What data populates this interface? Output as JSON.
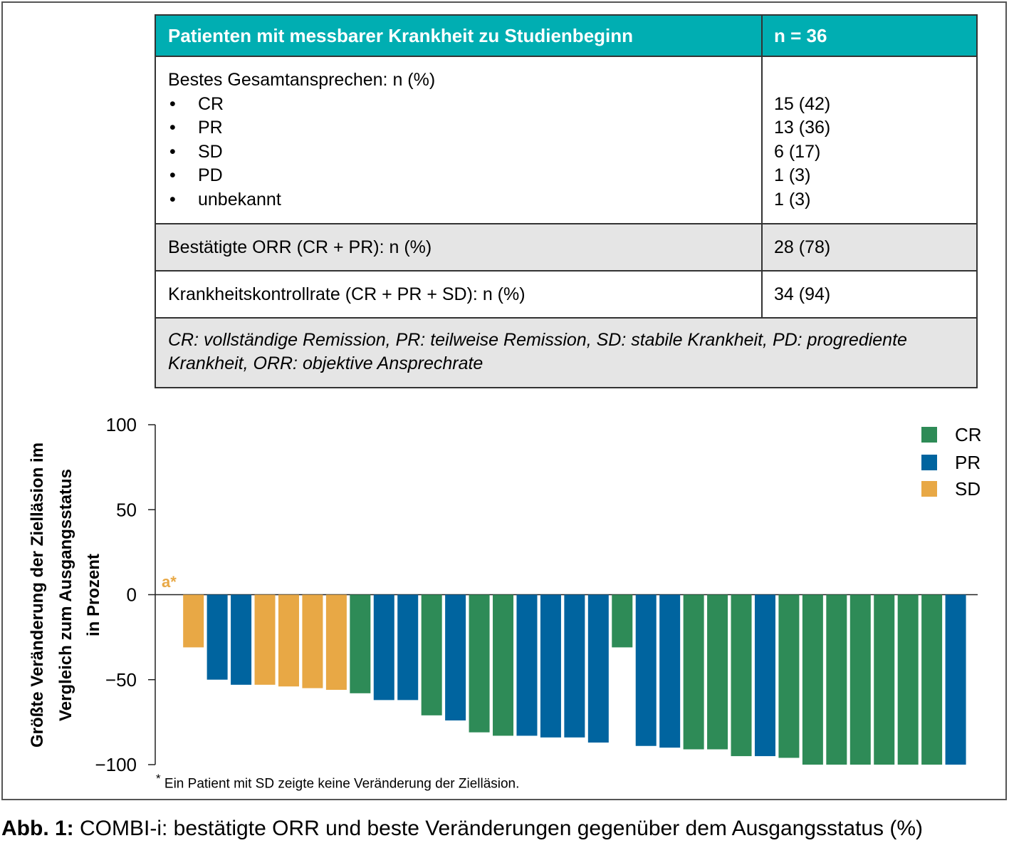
{
  "table": {
    "header": {
      "label": "Patienten mit messbarer Krankheit zu Studienbeginn",
      "value": "n = 36"
    },
    "response_section": {
      "title": "Bestes Gesamtansprechen: n (%)",
      "bullet": "•",
      "items": [
        {
          "label": "CR",
          "value": "15 (42)"
        },
        {
          "label": "PR",
          "value": "13 (36)"
        },
        {
          "label": "SD",
          "value": "6 (17)"
        },
        {
          "label": "PD",
          "value": "1 (3)"
        },
        {
          "label": "unbekannt",
          "value": "1 (3)"
        }
      ]
    },
    "orr": {
      "label": "Bestätigte ORR (CR + PR): n (%)",
      "value": "28 (78)"
    },
    "dcr": {
      "label": "Krankheitskontrollrate (CR + PR + SD): n (%)",
      "value": "34 (94)"
    },
    "footnote_line1": "CR: vollständige Remission, PR: teilweise Remission, SD: stabile Krankheit, PD: progrediente",
    "footnote_line2": "Krankheit, ORR: objektive Ansprechrate"
  },
  "colors": {
    "CR": "#2e8b57",
    "PR": "#00649f",
    "SD": "#e8a845",
    "header": "#00aeb2",
    "annotation": "#d9a441"
  },
  "chart_data": {
    "type": "bar",
    "ylabel_lines": [
      "Größte Veränderung der Zielläsion im",
      "Vergleich zum Ausgangsstatus",
      "in Prozent"
    ],
    "ylim": [
      -100,
      100
    ],
    "yticks": [
      100,
      50,
      0,
      -50,
      -100
    ],
    "ytick_labels": [
      "100",
      "50",
      "0",
      "−50",
      "−100"
    ],
    "grid": false,
    "legend": {
      "position": "top-right",
      "entries": [
        "CR",
        "PR",
        "SD"
      ]
    },
    "annotation": "a*",
    "bars": [
      {
        "category": "SD",
        "value": 0
      },
      {
        "category": "SD",
        "value": -31
      },
      {
        "category": "PR",
        "value": -50
      },
      {
        "category": "PR",
        "value": -53
      },
      {
        "category": "SD",
        "value": -53
      },
      {
        "category": "SD",
        "value": -54
      },
      {
        "category": "SD",
        "value": -55
      },
      {
        "category": "SD",
        "value": -56
      },
      {
        "category": "CR",
        "value": -58
      },
      {
        "category": "PR",
        "value": -62
      },
      {
        "category": "PR",
        "value": -62
      },
      {
        "category": "CR",
        "value": -71
      },
      {
        "category": "PR",
        "value": -74
      },
      {
        "category": "CR",
        "value": -81
      },
      {
        "category": "CR",
        "value": -83
      },
      {
        "category": "PR",
        "value": -83
      },
      {
        "category": "PR",
        "value": -84
      },
      {
        "category": "PR",
        "value": -84
      },
      {
        "category": "PR",
        "value": -87
      },
      {
        "category": "CR",
        "value": -31
      },
      {
        "category": "PR",
        "value": -89
      },
      {
        "category": "PR",
        "value": -90
      },
      {
        "category": "CR",
        "value": -91
      },
      {
        "category": "CR",
        "value": -91
      },
      {
        "category": "CR",
        "value": -95
      },
      {
        "category": "PR",
        "value": -95
      },
      {
        "category": "CR",
        "value": -96
      },
      {
        "category": "CR",
        "value": -100
      },
      {
        "category": "CR",
        "value": -100
      },
      {
        "category": "CR",
        "value": -100
      },
      {
        "category": "CR",
        "value": -100
      },
      {
        "category": "CR",
        "value": -100
      },
      {
        "category": "CR",
        "value": -100
      },
      {
        "category": "PR",
        "value": -100
      }
    ]
  },
  "footnote": {
    "mark": "*",
    "text": "Ein Patient mit SD zeigte keine Veränderung der Zielläsion."
  },
  "caption": {
    "label": "Abb. 1:",
    "text": " COMBI-i: bestätigte ORR und beste Veränderungen gegenüber dem Ausgangsstatus (%)"
  }
}
